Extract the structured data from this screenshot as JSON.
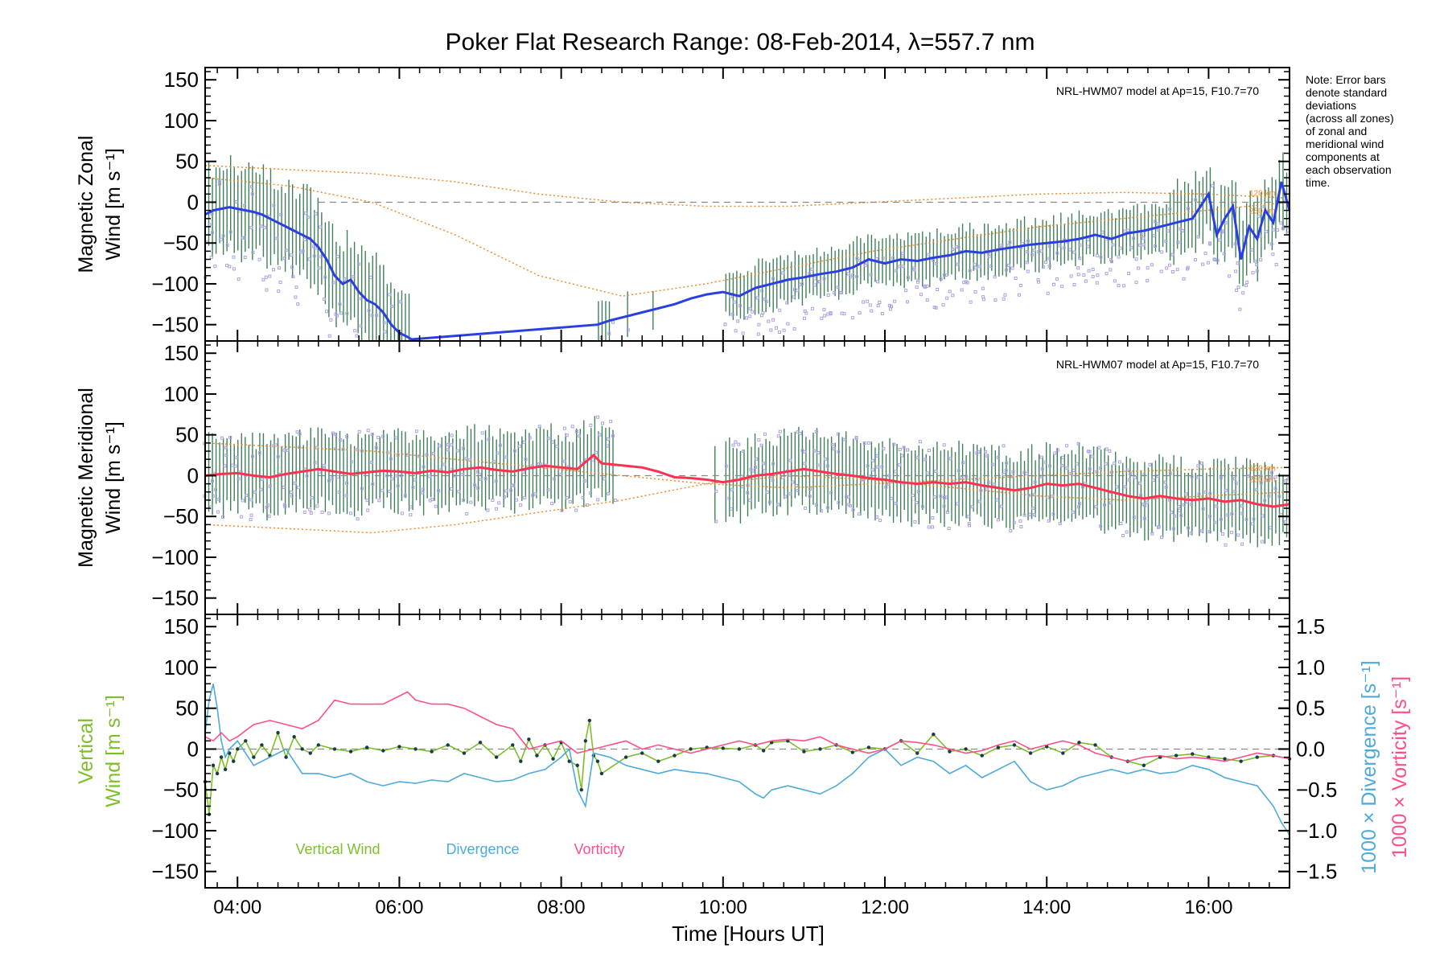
{
  "title": "Poker Flat Research Range: 08-Feb-2014, λ=557.7 nm",
  "note": [
    "Note: Error bars",
    "denote standard",
    "deviations",
    "(across all zones)",
    "of zonal and",
    "meridional wind",
    "components at",
    "each observation",
    "time."
  ],
  "model_label": "NRL-HWM07 model at Ap=15, F10.7=70",
  "model_small_labels": [
    "120 km",
    "250 km"
  ],
  "xlabel": "Time [Hours UT]",
  "colors": {
    "model": "#f08a2a",
    "zonal_line": "#2a3fe0",
    "zonal_line_light": "#5b9bff",
    "meridional_line": "#ff3050",
    "errorbar": "#1f6b3c",
    "scatter": "#a9a3e2",
    "vertical": "#7cbf2a",
    "divergence": "#4eaad8",
    "vorticity": "#ff4f8b",
    "points": "#1a3a4a"
  },
  "chart_data": [
    {
      "type": "line",
      "name": "zonal",
      "ylabel": [
        "Magnetic Zonal",
        "Wind [m s⁻¹]"
      ],
      "xlim": [
        3.6,
        17.0
      ],
      "ylim": [
        -170,
        165
      ],
      "yticks": [
        150,
        100,
        50,
        0,
        -50,
        -100,
        -150
      ],
      "series": [
        {
          "name": "Magnetic Zonal Wind",
          "x": [
            3.6,
            3.7,
            3.8,
            3.9,
            4.0,
            4.1,
            4.2,
            4.3,
            4.4,
            4.5,
            4.6,
            4.7,
            4.8,
            4.9,
            5.0,
            5.1,
            5.2,
            5.3,
            5.4,
            5.5,
            5.6,
            5.7,
            5.8,
            5.9,
            6.0,
            6.1,
            6.15,
            8.45,
            8.6,
            8.8,
            9.0,
            9.2,
            9.4,
            9.6,
            9.8,
            10.0,
            10.2,
            10.4,
            10.6,
            10.8,
            11.0,
            11.2,
            11.4,
            11.6,
            11.8,
            12.0,
            12.2,
            12.4,
            12.6,
            12.8,
            13.0,
            13.2,
            13.4,
            13.6,
            13.8,
            14.0,
            14.2,
            14.4,
            14.6,
            14.8,
            15.0,
            15.2,
            15.4,
            15.6,
            15.8,
            16.0,
            16.1,
            16.2,
            16.3,
            16.4,
            16.5,
            16.6,
            16.7,
            16.8,
            16.9,
            17.0
          ],
          "y": [
            -15,
            -10,
            -8,
            -6,
            -8,
            -10,
            -12,
            -15,
            -20,
            -25,
            -30,
            -35,
            -40,
            -45,
            -55,
            -70,
            -90,
            -100,
            -95,
            -110,
            -120,
            -125,
            -135,
            -150,
            -160,
            -165,
            -168,
            -150,
            -145,
            -140,
            -135,
            -130,
            -125,
            -118,
            -113,
            -110,
            -115,
            -105,
            -100,
            -95,
            -92,
            -88,
            -85,
            -80,
            -70,
            -75,
            -70,
            -72,
            -68,
            -65,
            -60,
            -62,
            -58,
            -55,
            -52,
            -50,
            -48,
            -45,
            -40,
            -45,
            -38,
            -35,
            -30,
            -25,
            -20,
            10,
            -40,
            -20,
            -5,
            -70,
            -30,
            -45,
            -10,
            -25,
            25,
            -10
          ]
        }
      ]
    },
    {
      "type": "line",
      "name": "meridional",
      "ylabel": [
        "Magnetic Meridional",
        "Wind [m s⁻¹]"
      ],
      "xlim": [
        3.6,
        17.0
      ],
      "ylim": [
        -170,
        165
      ],
      "yticks": [
        150,
        100,
        50,
        0,
        -50,
        -100,
        -150
      ],
      "series": [
        {
          "name": "Magnetic Meridional Wind",
          "x": [
            3.6,
            3.8,
            4.0,
            4.2,
            4.4,
            4.6,
            4.8,
            5.0,
            5.2,
            5.4,
            5.6,
            5.8,
            6.0,
            6.2,
            6.4,
            6.6,
            6.8,
            7.0,
            7.2,
            7.4,
            7.6,
            7.8,
            8.0,
            8.2,
            8.4,
            8.5,
            8.8,
            9.0,
            9.2,
            9.4,
            9.6,
            9.8,
            10.0,
            10.2,
            10.4,
            10.6,
            10.8,
            11.0,
            11.2,
            11.4,
            11.6,
            11.8,
            12.0,
            12.2,
            12.4,
            12.6,
            12.8,
            13.0,
            13.2,
            13.4,
            13.6,
            13.8,
            14.0,
            14.2,
            14.4,
            14.6,
            14.8,
            15.0,
            15.2,
            15.4,
            15.6,
            15.8,
            16.0,
            16.2,
            16.4,
            16.6,
            16.8,
            17.0
          ],
          "y": [
            0,
            2,
            3,
            0,
            -2,
            2,
            5,
            8,
            5,
            2,
            4,
            6,
            5,
            3,
            6,
            4,
            8,
            10,
            7,
            5,
            9,
            12,
            10,
            8,
            25,
            15,
            12,
            10,
            5,
            -2,
            -3,
            -5,
            -8,
            -5,
            0,
            2,
            5,
            8,
            5,
            2,
            0,
            -3,
            -5,
            -8,
            -10,
            -8,
            -10,
            -8,
            -12,
            -15,
            -18,
            -15,
            -10,
            -12,
            -10,
            -15,
            -20,
            -25,
            -28,
            -25,
            -28,
            -30,
            -28,
            -32,
            -30,
            -35,
            -38,
            -35
          ]
        }
      ]
    },
    {
      "type": "line",
      "name": "vertical",
      "ylabel": [
        "Vertical",
        "Wind [m s⁻¹]"
      ],
      "y2label": [
        "1000 × Divergence [s⁻¹]",
        "1000 × Vorticity [s⁻¹]"
      ],
      "xlim": [
        3.6,
        17.0
      ],
      "ylim": [
        -170,
        165
      ],
      "yticks": [
        150,
        100,
        50,
        0,
        -50,
        -100,
        -150
      ],
      "y2lim": [
        -1.7,
        1.65
      ],
      "y2ticks": [
        "1.5",
        "1.0",
        "0.5",
        "0.0",
        "-0.5",
        "-1.0",
        "-1.5"
      ],
      "xticks": [
        "04:00",
        "06:00",
        "08:00",
        "10:00",
        "12:00",
        "14:00",
        "16:00"
      ],
      "legend": [
        "Vertical Wind",
        "Divergence",
        "Vorticity"
      ],
      "series": [
        {
          "name": "Vertical Wind",
          "axis": "left",
          "x": [
            3.6,
            3.65,
            3.7,
            3.75,
            3.8,
            3.85,
            3.9,
            3.95,
            4.0,
            4.1,
            4.2,
            4.3,
            4.4,
            4.5,
            4.6,
            4.7,
            4.8,
            4.9,
            5.0,
            5.2,
            5.4,
            5.6,
            5.8,
            6.0,
            6.2,
            6.4,
            6.6,
            6.8,
            7.0,
            7.2,
            7.4,
            7.5,
            7.6,
            7.7,
            7.8,
            7.9,
            8.0,
            8.1,
            8.2,
            8.25,
            8.3,
            8.35,
            8.4,
            8.45,
            8.5,
            8.8,
            9.0,
            9.2,
            9.4,
            9.6,
            9.8,
            10.0,
            10.2,
            10.4,
            10.5,
            10.6,
            10.8,
            11.0,
            11.2,
            11.4,
            11.6,
            11.8,
            12.0,
            12.2,
            12.4,
            12.6,
            12.8,
            13.0,
            13.2,
            13.4,
            13.6,
            13.8,
            14.0,
            14.2,
            14.4,
            14.6,
            14.8,
            15.0,
            15.2,
            15.4,
            15.6,
            15.8,
            16.0,
            16.2,
            16.4,
            16.6,
            16.8,
            17.0
          ],
          "y": [
            -40,
            -80,
            -20,
            -30,
            -10,
            -25,
            -5,
            -15,
            0,
            10,
            -10,
            5,
            -8,
            20,
            -10,
            15,
            0,
            -5,
            5,
            0,
            -3,
            2,
            -2,
            3,
            0,
            -3,
            5,
            -5,
            8,
            -10,
            5,
            -15,
            12,
            -8,
            5,
            -12,
            8,
            -15,
            -20,
            -50,
            10,
            35,
            -8,
            -15,
            -30,
            -10,
            -5,
            -15,
            -8,
            0,
            2,
            1,
            0,
            5,
            -2,
            8,
            10,
            -3,
            0,
            5,
            -4,
            2,
            0,
            10,
            -5,
            18,
            -3,
            0,
            -8,
            2,
            5,
            -5,
            3,
            -5,
            8,
            5,
            -10,
            -15,
            -20,
            -10,
            -8,
            -6,
            -10,
            -12,
            -15,
            -10,
            -8,
            -12
          ]
        },
        {
          "name": "Divergence",
          "axis": "right",
          "x": [
            3.6,
            3.65,
            3.7,
            3.75,
            3.8,
            3.85,
            3.9,
            4.0,
            4.2,
            4.4,
            4.6,
            4.8,
            5.0,
            5.2,
            5.4,
            5.6,
            5.8,
            6.0,
            6.2,
            6.4,
            6.6,
            6.8,
            7.0,
            7.2,
            7.4,
            7.6,
            7.8,
            8.0,
            8.1,
            8.2,
            8.3,
            8.4,
            8.6,
            8.8,
            9.0,
            9.2,
            9.4,
            9.6,
            9.8,
            10.0,
            10.2,
            10.4,
            10.5,
            10.6,
            10.8,
            11.0,
            11.2,
            11.4,
            11.6,
            11.8,
            12.0,
            12.2,
            12.4,
            12.6,
            12.8,
            13.0,
            13.2,
            13.4,
            13.6,
            13.8,
            14.0,
            14.2,
            14.4,
            14.6,
            14.8,
            15.0,
            15.2,
            15.4,
            15.6,
            15.8,
            16.0,
            16.2,
            16.4,
            16.6,
            16.8,
            16.9,
            17.0
          ],
          "y": [
            0.2,
            0.6,
            0.8,
            0.5,
            0.1,
            -0.1,
            0.0,
            0.1,
            -0.2,
            -0.1,
            0.0,
            -0.3,
            -0.3,
            -0.35,
            -0.3,
            -0.4,
            -0.45,
            -0.4,
            -0.42,
            -0.38,
            -0.4,
            -0.3,
            -0.35,
            -0.4,
            -0.38,
            -0.3,
            -0.25,
            -0.1,
            0.0,
            -0.5,
            -0.7,
            -0.05,
            -0.1,
            -0.2,
            -0.25,
            -0.3,
            -0.25,
            -0.28,
            -0.3,
            -0.35,
            -0.4,
            -0.55,
            -0.6,
            -0.5,
            -0.45,
            -0.5,
            -0.55,
            -0.45,
            -0.3,
            -0.1,
            0.0,
            -0.2,
            -0.1,
            -0.15,
            -0.3,
            -0.2,
            -0.35,
            -0.25,
            -0.15,
            -0.4,
            -0.5,
            -0.45,
            -0.35,
            -0.3,
            -0.25,
            -0.3,
            -0.25,
            -0.3,
            -0.28,
            -0.2,
            -0.25,
            -0.35,
            -0.4,
            -0.45,
            -0.7,
            -0.9,
            -1.05
          ]
        },
        {
          "name": "Vorticity",
          "axis": "right",
          "x": [
            3.6,
            3.7,
            3.8,
            3.9,
            4.0,
            4.2,
            4.4,
            4.6,
            4.8,
            5.0,
            5.2,
            5.4,
            5.6,
            5.8,
            6.0,
            6.1,
            6.2,
            6.4,
            6.6,
            6.8,
            7.0,
            7.2,
            7.4,
            7.6,
            7.8,
            8.0,
            8.2,
            8.4,
            8.6,
            8.8,
            9.0,
            9.2,
            9.4,
            9.6,
            9.8,
            10.0,
            10.2,
            10.4,
            10.6,
            10.8,
            11.0,
            11.2,
            11.4,
            11.6,
            11.8,
            12.0,
            12.2,
            12.4,
            12.6,
            12.8,
            13.0,
            13.2,
            13.4,
            13.6,
            13.8,
            14.0,
            14.2,
            14.4,
            14.6,
            14.8,
            15.0,
            15.2,
            15.4,
            15.6,
            15.8,
            16.0,
            16.2,
            16.4,
            16.6,
            16.8,
            17.0
          ],
          "y": [
            0.15,
            0.1,
            0.2,
            0.1,
            0.15,
            0.3,
            0.35,
            0.3,
            0.25,
            0.35,
            0.6,
            0.55,
            0.55,
            0.55,
            0.65,
            0.7,
            0.6,
            0.55,
            0.55,
            0.5,
            0.4,
            0.3,
            0.25,
            0.0,
            0.05,
            0.1,
            -0.05,
            0.0,
            0.05,
            0.1,
            0.0,
            0.05,
            0.0,
            -0.05,
            0.0,
            0.05,
            0.1,
            0.05,
            0.1,
            0.12,
            0.1,
            0.15,
            0.05,
            0.0,
            -0.05,
            0.0,
            0.1,
            0.08,
            0.05,
            0.0,
            -0.05,
            -0.02,
            0.05,
            0.1,
            0.0,
            0.05,
            0.1,
            0.05,
            -0.05,
            -0.1,
            -0.15,
            -0.1,
            -0.08,
            -0.12,
            -0.1,
            -0.12,
            -0.15,
            -0.1,
            -0.05,
            -0.08,
            -0.12
          ]
        }
      ]
    }
  ]
}
